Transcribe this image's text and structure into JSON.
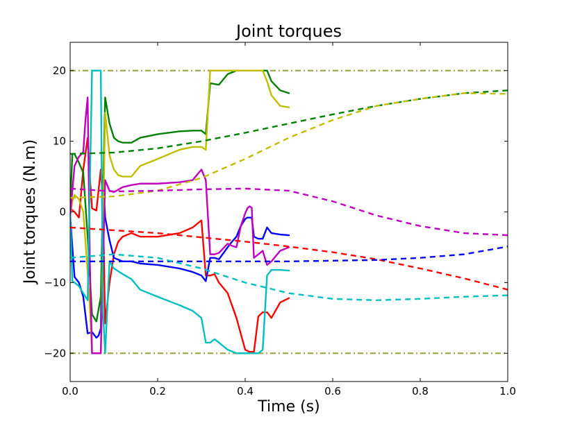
{
  "chart_data": {
    "type": "line",
    "title": "Joint torques",
    "xlabel": "Time (s)",
    "ylabel": "Joint torques (N.m)",
    "xlim": [
      0.0,
      1.0
    ],
    "ylim": [
      -24,
      24
    ],
    "xticks": [
      0.0,
      0.2,
      0.4,
      0.6,
      0.8,
      1.0
    ],
    "xtick_labels": [
      "0.0",
      "0.2",
      "0.4",
      "0.6",
      "0.8",
      "1.0"
    ],
    "yticks": [
      -20,
      -10,
      0,
      10,
      20
    ],
    "ytick_labels": [
      "−20",
      "−10",
      "0",
      "10",
      "20"
    ],
    "grid": false,
    "legend": "none",
    "limit_lines": [
      {
        "y": 20,
        "color": "#9fa84a",
        "style": "dashdot"
      },
      {
        "y": -20,
        "color": "#9fa84a",
        "style": "dashdot"
      }
    ],
    "series": [
      {
        "color": "#ff0000",
        "style": "solid",
        "x": [
          0.0,
          0.01,
          0.02,
          0.03,
          0.04,
          0.045,
          0.05,
          0.06,
          0.07,
          0.075,
          0.08,
          0.09,
          0.1,
          0.11,
          0.12,
          0.14,
          0.16,
          0.2,
          0.25,
          0.28,
          0.3,
          0.31,
          0.32,
          0.33,
          0.34,
          0.36,
          0.38,
          0.4,
          0.41,
          0.42,
          0.43,
          0.44,
          0.45,
          0.46,
          0.48,
          0.5
        ],
        "y": [
          0.5,
          0.0,
          -0.8,
          6.0,
          10.5,
          5.0,
          0.5,
          0.2,
          6.0,
          1.0,
          -15.8,
          -10.0,
          -6.0,
          -4.2,
          -3.5,
          -3.0,
          -3.5,
          -3.5,
          -3.0,
          -2.2,
          -1.2,
          -9.0,
          -9.0,
          -8.8,
          -10.0,
          -11.5,
          -15.0,
          -19.5,
          -19.8,
          -19.8,
          -14.8,
          -14.2,
          -14.2,
          -15.0,
          -12.8,
          -12.2
        ]
      },
      {
        "color": "#0000ff",
        "style": "solid",
        "x": [
          0.0,
          0.005,
          0.01,
          0.02,
          0.03,
          0.04,
          0.05,
          0.06,
          0.065,
          0.07,
          0.075,
          0.08,
          0.09,
          0.1,
          0.12,
          0.14,
          0.16,
          0.2,
          0.25,
          0.28,
          0.3,
          0.31,
          0.32,
          0.33,
          0.34,
          0.36,
          0.37,
          0.38,
          0.39,
          0.4,
          0.405,
          0.41,
          0.415,
          0.42,
          0.43,
          0.44,
          0.45,
          0.46,
          0.48,
          0.5
        ],
        "y": [
          -0.5,
          -5.0,
          -9.2,
          -10.0,
          -12.0,
          -17.2,
          -17.0,
          -17.8,
          -17.5,
          -16.5,
          5.0,
          -0.8,
          -4.0,
          -6.5,
          -7.0,
          -7.0,
          -7.3,
          -7.5,
          -8.0,
          -8.5,
          -9.0,
          -9.8,
          -6.5,
          -6.5,
          -6.7,
          -5.0,
          -4.2,
          -3.5,
          -2.0,
          -1.0,
          -0.8,
          -0.8,
          -0.8,
          -3.5,
          -3.8,
          -3.8,
          -2.2,
          -3.0,
          -3.2,
          -3.3
        ]
      },
      {
        "color": "#008000",
        "style": "solid",
        "x": [
          0.0,
          0.005,
          0.01,
          0.02,
          0.03,
          0.04,
          0.05,
          0.06,
          0.07,
          0.08,
          0.09,
          0.1,
          0.11,
          0.12,
          0.13,
          0.14,
          0.16,
          0.2,
          0.25,
          0.28,
          0.3,
          0.31,
          0.32,
          0.34,
          0.36,
          0.38,
          0.4,
          0.42,
          0.44,
          0.45,
          0.46,
          0.48,
          0.5
        ],
        "y": [
          0.5,
          8.2,
          8.2,
          7.0,
          5.5,
          -3.5,
          -14.5,
          -15.5,
          -12.0,
          16.2,
          12.5,
          10.5,
          10.0,
          9.8,
          9.8,
          9.8,
          10.5,
          11.0,
          11.4,
          11.5,
          11.5,
          11.0,
          18.2,
          18.0,
          19.5,
          20.0,
          20.0,
          20.0,
          20.0,
          20.0,
          18.5,
          17.2,
          16.8
        ]
      },
      {
        "color": "#bfbf00",
        "style": "solid",
        "x": [
          0.0,
          0.005,
          0.01,
          0.02,
          0.03,
          0.04,
          0.045,
          0.05,
          0.06,
          0.07,
          0.08,
          0.09,
          0.1,
          0.11,
          0.12,
          0.13,
          0.14,
          0.16,
          0.2,
          0.25,
          0.28,
          0.3,
          0.31,
          0.32,
          0.34,
          0.36,
          0.38,
          0.4,
          0.42,
          0.44,
          0.45,
          0.46,
          0.48,
          0.5
        ],
        "y": [
          -0.5,
          1.5,
          2.4,
          1.8,
          0.0,
          -8.5,
          -13.5,
          -20.0,
          -20.0,
          -20.0,
          14.0,
          8.0,
          6.0,
          5.2,
          5.0,
          5.0,
          5.0,
          6.5,
          7.5,
          8.8,
          9.2,
          9.2,
          8.8,
          20.0,
          20.0,
          20.0,
          20.0,
          20.0,
          20.0,
          20.0,
          18.5,
          16.5,
          15.0,
          14.8
        ]
      },
      {
        "color": "#bf00bf",
        "style": "solid",
        "x": [
          0.0,
          0.01,
          0.02,
          0.03,
          0.035,
          0.04,
          0.045,
          0.05,
          0.06,
          0.07,
          0.08,
          0.09,
          0.1,
          0.12,
          0.14,
          0.16,
          0.2,
          0.25,
          0.28,
          0.3,
          0.31,
          0.32,
          0.33,
          0.34,
          0.36,
          0.37,
          0.38,
          0.39,
          0.4,
          0.405,
          0.41,
          0.415,
          0.42,
          0.43,
          0.44,
          0.45,
          0.46,
          0.48,
          0.5
        ],
        "y": [
          -0.5,
          6.5,
          7.8,
          8.5,
          13.0,
          16.2,
          -7.0,
          -20.0,
          -20.0,
          -20.0,
          4.5,
          3.0,
          2.8,
          3.5,
          3.8,
          4.0,
          4.0,
          4.2,
          4.5,
          6.0,
          4.5,
          -6.0,
          -6.0,
          -5.8,
          -4.5,
          -4.8,
          -5.0,
          -2.0,
          -0.2,
          0.5,
          0.8,
          0.6,
          -6.5,
          -6.0,
          -5.5,
          -7.5,
          -7.0,
          -5.5,
          -5.0
        ]
      },
      {
        "color": "#00bfbf",
        "style": "solid",
        "x": [
          0.0,
          0.005,
          0.01,
          0.02,
          0.03,
          0.04,
          0.05,
          0.055,
          0.06,
          0.065,
          0.07,
          0.075,
          0.08,
          0.09,
          0.1,
          0.12,
          0.14,
          0.16,
          0.2,
          0.25,
          0.28,
          0.3,
          0.31,
          0.32,
          0.33,
          0.34,
          0.36,
          0.38,
          0.4,
          0.42,
          0.43,
          0.44,
          0.45,
          0.46,
          0.48,
          0.5
        ],
        "y": [
          -0.5,
          -9.8,
          -10.0,
          -10.5,
          -11.5,
          -12.5,
          20.0,
          20.0,
          20.0,
          20.0,
          20.0,
          -14.0,
          -20.0,
          -7.0,
          -8.0,
          -8.8,
          -9.5,
          -11.0,
          -12.0,
          -13.2,
          -14.0,
          -15.0,
          -18.5,
          -18.5,
          -18.0,
          -18.5,
          -19.5,
          -20.0,
          -20.0,
          -20.0,
          -20.0,
          -19.5,
          -9.0,
          -8.2,
          -8.2,
          -8.3
        ]
      },
      {
        "color": "#ff0000",
        "style": "dashed",
        "x": [
          0.0,
          0.1,
          0.2,
          0.3,
          0.4,
          0.5,
          0.6,
          0.7,
          0.8,
          0.9,
          1.0
        ],
        "y": [
          -2.2,
          -2.6,
          -3.0,
          -3.6,
          -4.2,
          -4.9,
          -5.7,
          -6.7,
          -8.0,
          -9.4,
          -11.0
        ]
      },
      {
        "color": "#0000ff",
        "style": "dashed",
        "x": [
          0.0,
          0.1,
          0.2,
          0.3,
          0.4,
          0.5,
          0.6,
          0.7,
          0.8,
          0.9,
          1.0
        ],
        "y": [
          -7.0,
          -7.0,
          -7.0,
          -7.0,
          -7.0,
          -7.0,
          -6.9,
          -6.8,
          -6.5,
          -6.0,
          -4.9
        ]
      },
      {
        "color": "#008000",
        "style": "dashed",
        "x": [
          0.0,
          0.1,
          0.2,
          0.3,
          0.4,
          0.5,
          0.6,
          0.7,
          0.8,
          0.9,
          1.0
        ],
        "y": [
          8.2,
          8.4,
          9.0,
          10.0,
          11.2,
          12.5,
          13.8,
          15.0,
          16.0,
          16.8,
          17.2
        ]
      },
      {
        "color": "#bfbf00",
        "style": "dashed",
        "x": [
          0.0,
          0.1,
          0.2,
          0.3,
          0.4,
          0.5,
          0.6,
          0.7,
          0.8,
          0.9,
          1.0
        ],
        "y": [
          2.0,
          2.2,
          3.0,
          4.8,
          7.5,
          10.5,
          13.0,
          15.0,
          16.0,
          16.8,
          16.7
        ]
      },
      {
        "color": "#bf00bf",
        "style": "dashed",
        "x": [
          0.0,
          0.1,
          0.2,
          0.3,
          0.4,
          0.5,
          0.6,
          0.7,
          0.8,
          0.9,
          1.0
        ],
        "y": [
          3.3,
          2.9,
          3.0,
          3.2,
          3.3,
          3.0,
          1.5,
          -0.5,
          -2.0,
          -3.0,
          -3.3
        ]
      },
      {
        "color": "#00bfbf",
        "style": "dashed",
        "x": [
          0.0,
          0.1,
          0.2,
          0.3,
          0.4,
          0.5,
          0.6,
          0.7,
          0.8,
          0.9,
          1.0
        ],
        "y": [
          -6.5,
          -6.0,
          -6.5,
          -8.0,
          -10.0,
          -11.5,
          -12.3,
          -12.5,
          -12.3,
          -12.0,
          -11.8
        ]
      }
    ]
  }
}
